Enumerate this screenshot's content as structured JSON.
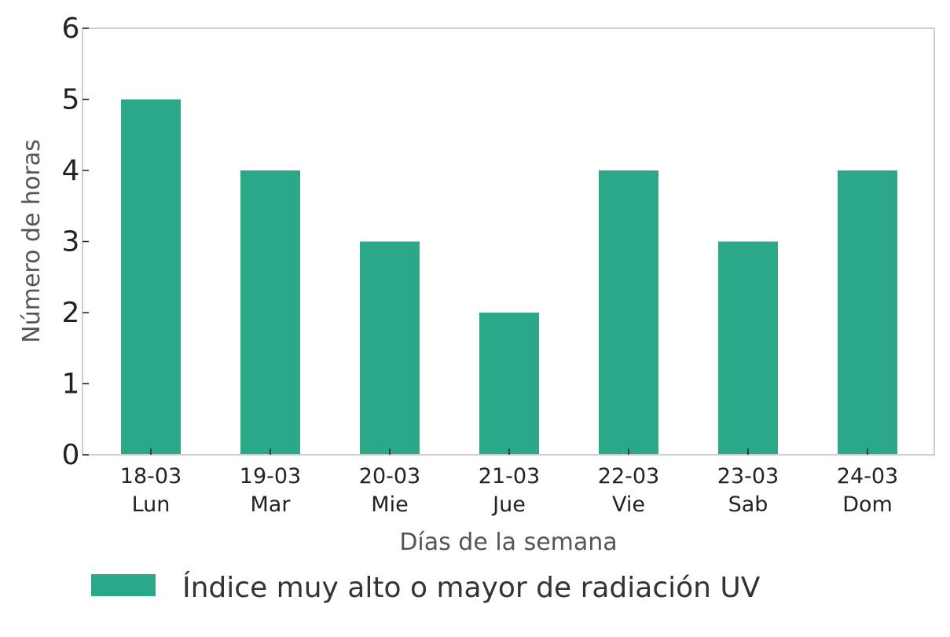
{
  "chart_data": {
    "type": "bar",
    "categories": [
      [
        "18-03",
        "Lun"
      ],
      [
        "19-03",
        "Mar"
      ],
      [
        "20-03",
        "Mie"
      ],
      [
        "21-03",
        "Jue"
      ],
      [
        "22-03",
        "Vie"
      ],
      [
        "23-03",
        "Sab"
      ],
      [
        "24-03",
        "Dom"
      ]
    ],
    "series": [
      {
        "name": "Índice muy alto o mayor de radiación UV",
        "values": [
          5,
          4,
          3,
          2,
          4,
          3,
          4
        ],
        "color": "#2aa887"
      }
    ],
    "title": "",
    "xlabel": "Días de la semana",
    "ylabel": "Número de horas",
    "ylim": [
      0,
      6
    ],
    "yticks": [
      0,
      1,
      2,
      3,
      4,
      5,
      6
    ],
    "grid": false,
    "legend_position": "bottom"
  }
}
